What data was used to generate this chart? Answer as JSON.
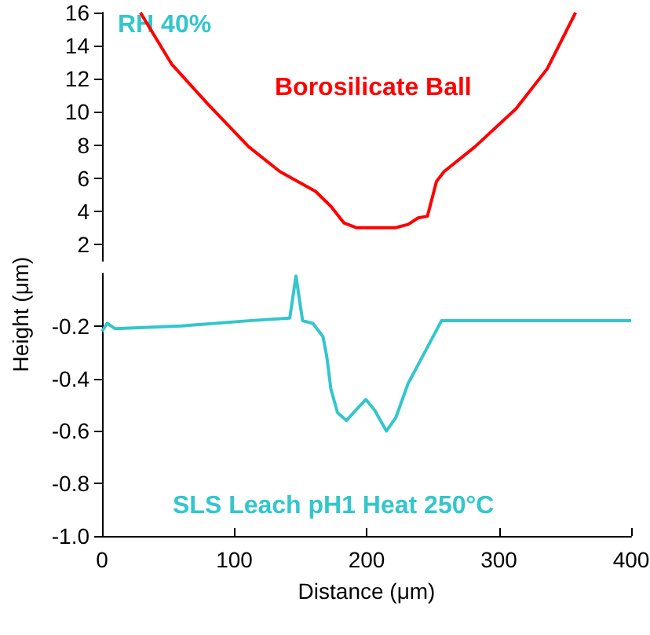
{
  "chart_data": [
    {
      "type": "line",
      "ylabel": "Height (μm)",
      "xlim": [
        0,
        400
      ],
      "xticks": [
        0,
        100,
        200,
        300,
        400
      ],
      "ylim": [
        1,
        16
      ],
      "yticks": [
        2,
        4,
        6,
        8,
        10,
        12,
        14,
        16
      ],
      "tick_labels": "y",
      "marker": "none",
      "annotations": [
        "RH 40%"
      ],
      "series": [
        {
          "name": "Borosilicate Ball",
          "color": "#ff0000",
          "x": [
            29,
            52.5,
            79.7,
            110.8,
            134.4,
            161.4,
            173,
            182.8,
            192.5,
            211.8,
            221.6,
            231.3,
            239,
            246,
            252.8,
            258.6,
            282,
            313,
            336.5,
            358
          ],
          "values": [
            16,
            12.9,
            10.5,
            7.9,
            6.4,
            5.2,
            4.3,
            3.3,
            3.0,
            3.0,
            3.0,
            3.2,
            3.6,
            3.7,
            5.8,
            6.4,
            7.9,
            10.2,
            12.6,
            16
          ]
        }
      ]
    },
    {
      "type": "line",
      "xlabel": "Distance (μm)",
      "xlim": [
        0,
        400
      ],
      "xticks": [
        0,
        100,
        200,
        300,
        400
      ],
      "ylim": [
        -1,
        0
      ],
      "yticks": [
        {
          "value": -1,
          "label": "-1.0"
        },
        -0.8,
        -0.6,
        -0.4,
        -0.2
      ],
      "marker": "none",
      "series": [
        {
          "name": "SLS Leach pH1 Heat 250°C",
          "color": "#33c6cc",
          "x": [
            0,
            3.9,
            9.8,
            60,
            110.8,
            141.9,
            146.6,
            151.6,
            159.4,
            167,
            170,
            173,
            178,
            184.7,
            192,
            199.4,
            206,
            215,
            222,
            231.3,
            245,
            256.6,
            313,
            400
          ],
          "values": [
            -0.22,
            -0.19,
            -0.21,
            -0.2,
            -0.18,
            -0.17,
            -0.01,
            -0.18,
            -0.19,
            -0.24,
            -0.32,
            -0.44,
            -0.53,
            -0.56,
            -0.52,
            -0.48,
            -0.52,
            -0.6,
            -0.55,
            -0.42,
            -0.29,
            -0.18,
            -0.18,
            -0.18
          ]
        }
      ]
    }
  ]
}
